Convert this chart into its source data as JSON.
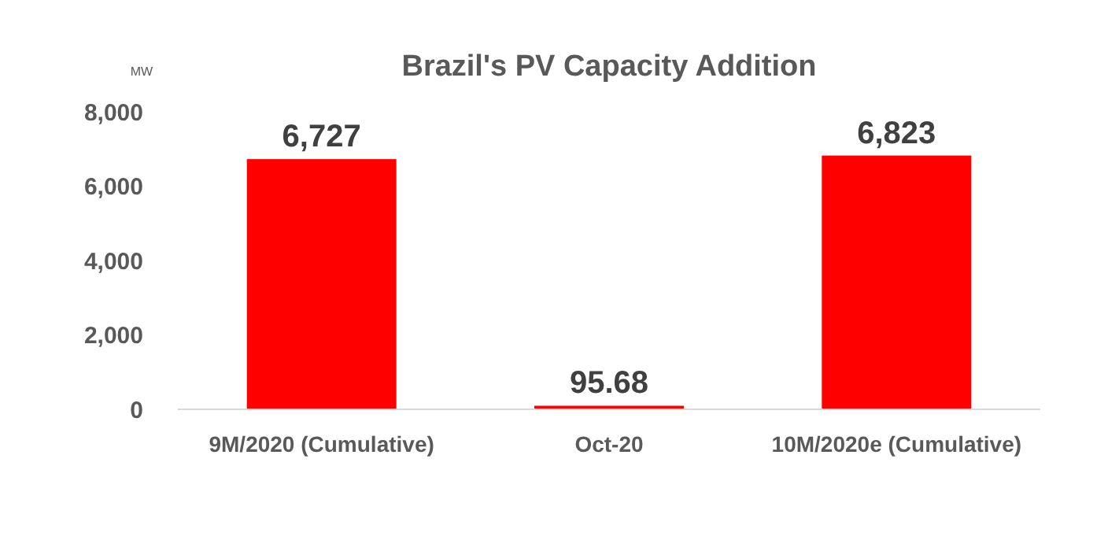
{
  "chart_data": {
    "type": "bar",
    "title": "Brazil's PV Capacity Addition",
    "ylabel": "MW",
    "categories": [
      "9M/2020 (Cumulative)",
      "Oct-20",
      "10M/2020e (Cumulative)"
    ],
    "values": [
      6727,
      95.68,
      6823
    ],
    "color": "#ff0000",
    "value_labels": [
      "6,727",
      "95.68",
      "6,823"
    ],
    "ylim": [
      0,
      8000
    ],
    "yticks": [
      {
        "value": 0,
        "label": "0"
      },
      {
        "value": 2000,
        "label": "2,000"
      },
      {
        "value": 4000,
        "label": "4,000"
      },
      {
        "value": 6000,
        "label": "6,000"
      },
      {
        "value": 8000,
        "label": "8,000"
      }
    ],
    "grid": false
  }
}
